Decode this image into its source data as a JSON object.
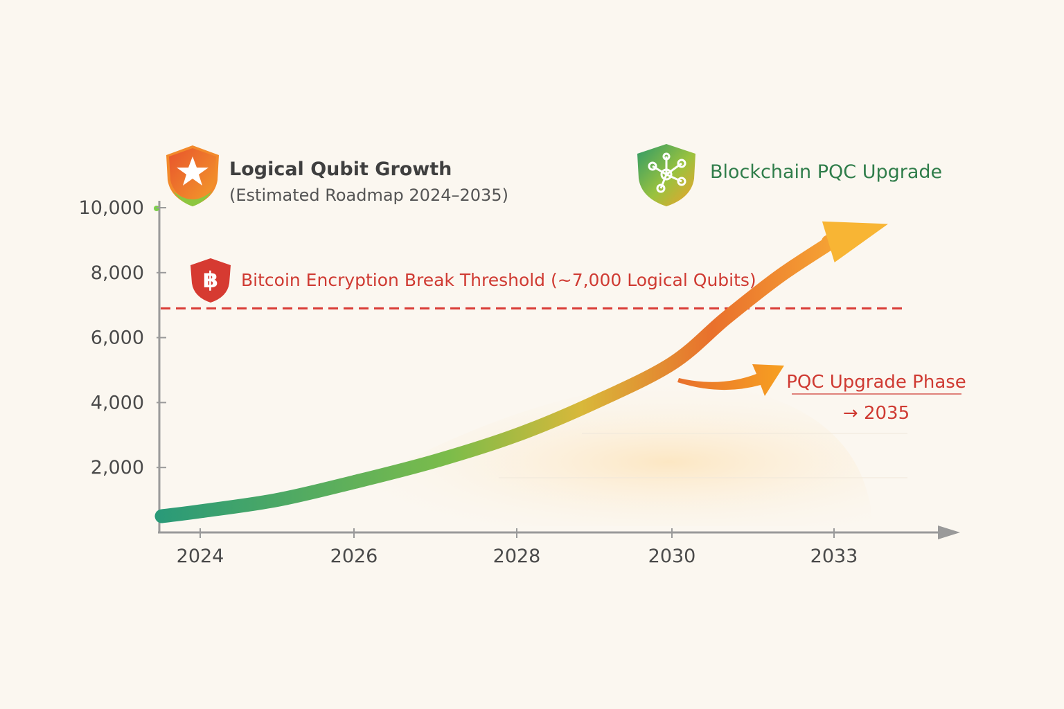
{
  "chart_data": {
    "type": "line",
    "title": "Logical Qubit Growth",
    "subtitle": "(Estimated Roadmap 2024–2035)",
    "x_ticks": [
      "2024",
      "2026",
      "2028",
      "2030",
      "2033"
    ],
    "y_ticks": [
      "10,000",
      "8,000",
      "6,000",
      "4,000",
      "2,000"
    ],
    "y_tick_values": [
      10000,
      8000,
      6000,
      4000,
      2000
    ],
    "ylim": [
      0,
      10000
    ],
    "series": [
      {
        "x": [
          2023.5,
          2024,
          2025,
          2026,
          2027,
          2028,
          2029,
          2030,
          2031,
          2032,
          2033,
          2034
        ],
        "y": [
          500,
          650,
          1000,
          1550,
          2200,
          3000,
          4000,
          5200,
          6600,
          7900,
          9000,
          9500
        ]
      }
    ],
    "threshold": {
      "value": 6900,
      "label": "Bitcoin Encryption Break Threshold (~7,000 Logical Qubits)",
      "color": "#d93a34"
    },
    "annotations": {
      "upgrade_label": "Blockchain PQC Upgrade",
      "phase_label": "PQC Upgrade Phase",
      "phase_year": "→ 2035"
    },
    "colors": {
      "curve_start": "#2a9a78",
      "curve_mid": "#d8b83a",
      "curve_end": "#fbb938",
      "threshold": "#d93a34",
      "label_green": "#2f7d4a",
      "label_red": "#cf3a32"
    },
    "icons": {
      "title": "star-shield-icon",
      "threshold": "bitcoin-shield-icon",
      "upgrade": "network-shield-icon"
    },
    "grid": false
  }
}
